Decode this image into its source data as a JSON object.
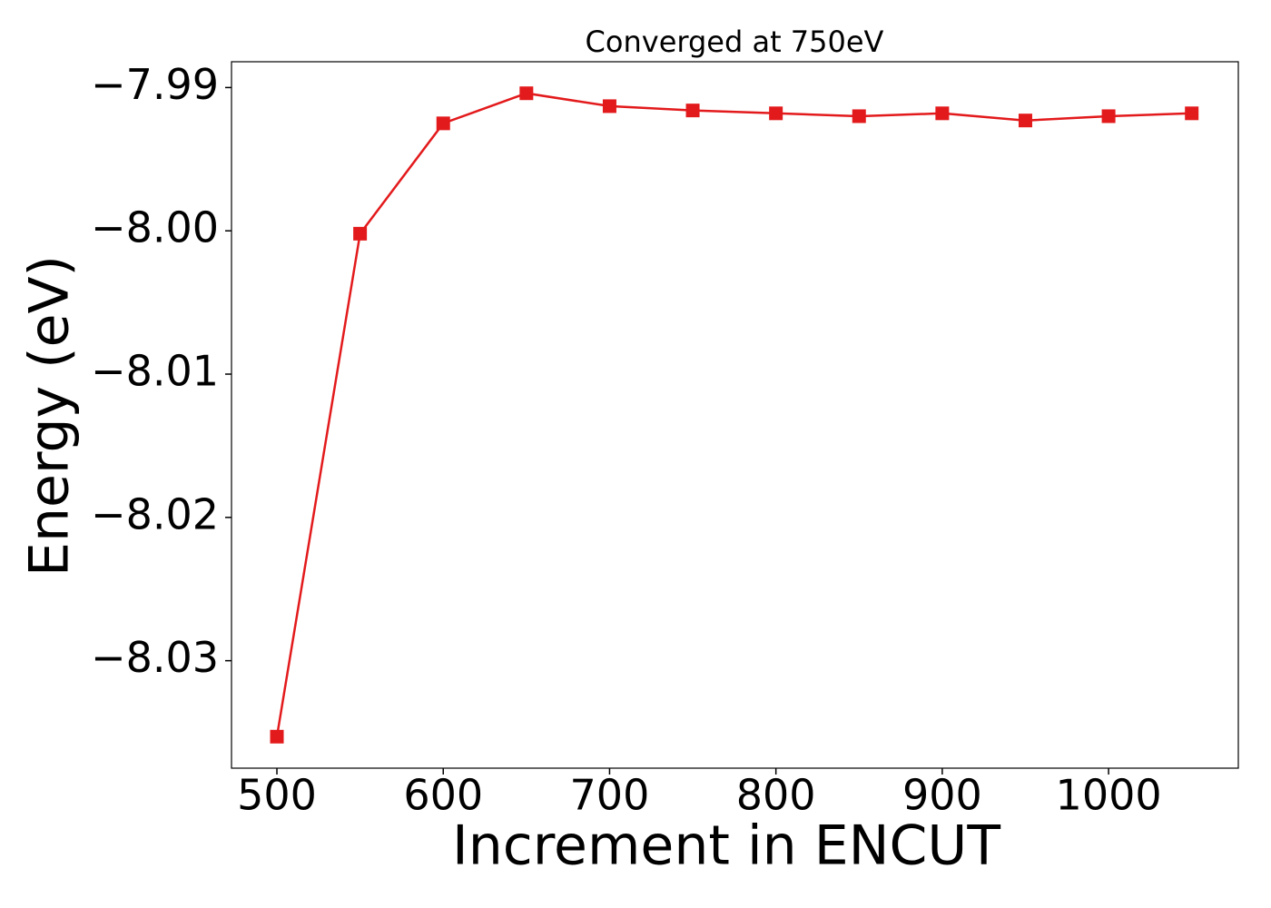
{
  "chart_data": {
    "type": "line",
    "title": "Converged at 750eV",
    "x_label": "Increment in ENCUT",
    "y_label": "Energy (eV)",
    "x": [
      500,
      550,
      600,
      650,
      700,
      750,
      800,
      850,
      900,
      950,
      1000,
      1050
    ],
    "values": [
      -8.0353,
      -8.0002,
      -7.9925,
      -7.9904,
      -7.9913,
      -7.9916,
      -7.9918,
      -7.992,
      -7.9918,
      -7.9923,
      -7.992,
      -7.9918
    ],
    "color": "#e31a1c",
    "marker": "square",
    "xlim": [
      472.7,
      1078
    ],
    "xticks": [
      500,
      600,
      700,
      800,
      900,
      1000
    ],
    "ylim": [
      -8.0375,
      -7.9882
    ],
    "yticks": [
      {
        "value": -7.99,
        "label": "−7.99"
      },
      {
        "value": -8.0,
        "label": "−8.00"
      },
      {
        "value": -8.01,
        "label": "−8.01"
      },
      {
        "value": -8.02,
        "label": "−8.02"
      },
      {
        "value": -8.03,
        "label": "−8.03"
      }
    ],
    "grid": false
  }
}
